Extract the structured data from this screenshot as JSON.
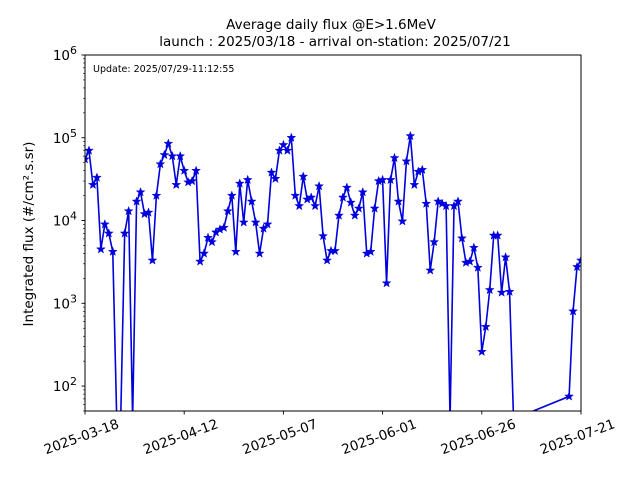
{
  "chart_data": {
    "type": "line",
    "title_line1": "Average daily flux @E>1.6MeV",
    "title_line2": "launch : 2025/03/18 - arrival on-station: 2025/07/21",
    "annotation": "Update: 2025/07/29-11:12:55",
    "xlabel": "",
    "ylabel": "Integrated flux (#/cm².s.sr)",
    "y_scale": "log",
    "ylim": [
      50,
      1000000
    ],
    "y_ticks": [
      {
        "value": 100,
        "base": "10",
        "exp": "2"
      },
      {
        "value": 1000,
        "base": "10",
        "exp": "3"
      },
      {
        "value": 10000,
        "base": "10",
        "exp": "4"
      },
      {
        "value": 100000,
        "base": "10",
        "exp": "5"
      },
      {
        "value": 1000000,
        "base": "10",
        "exp": "6"
      }
    ],
    "xlim": [
      "2025-03-18",
      "2025-07-21"
    ],
    "x_ticks": [
      "2025-03-18",
      "2025-04-12",
      "2025-05-07",
      "2025-06-01",
      "2025-06-26",
      "2025-07-21"
    ],
    "grid": false,
    "line_color": "#0000dd",
    "marker": "star",
    "series": [
      {
        "name": "",
        "points": [
          [
            "2025-03-18",
            55000
          ],
          [
            "2025-03-19",
            70000
          ],
          [
            "2025-03-20",
            27000
          ],
          [
            "2025-03-21",
            33000
          ],
          [
            "2025-03-22",
            4500
          ],
          [
            "2025-03-23",
            9000
          ],
          [
            "2025-03-24",
            7000
          ],
          [
            "2025-03-25",
            4200
          ],
          [
            "2025-03-26",
            40
          ],
          [
            "2025-03-27",
            40
          ],
          [
            "2025-03-28",
            7000
          ],
          [
            "2025-03-29",
            13000
          ],
          [
            "2025-03-30",
            40
          ],
          [
            "2025-03-31",
            17000
          ],
          [
            "2025-04-01",
            22000
          ],
          [
            "2025-04-02",
            12000
          ],
          [
            "2025-04-03",
            12500
          ],
          [
            "2025-04-04",
            3300
          ],
          [
            "2025-04-05",
            20000
          ],
          [
            "2025-04-06",
            48000
          ],
          [
            "2025-04-07",
            62000
          ],
          [
            "2025-04-08",
            85000
          ],
          [
            "2025-04-09",
            60000
          ],
          [
            "2025-04-10",
            27000
          ],
          [
            "2025-04-11",
            60000
          ],
          [
            "2025-04-12",
            40000
          ],
          [
            "2025-04-13",
            29000
          ],
          [
            "2025-04-14",
            30000
          ],
          [
            "2025-04-15",
            40000
          ],
          [
            "2025-04-16",
            3200
          ],
          [
            "2025-04-17",
            4000
          ],
          [
            "2025-04-18",
            6200
          ],
          [
            "2025-04-19",
            5500
          ],
          [
            "2025-04-20",
            7200
          ],
          [
            "2025-04-21",
            7800
          ],
          [
            "2025-04-22",
            8200
          ],
          [
            "2025-04-23",
            13000
          ],
          [
            "2025-04-24",
            20000
          ],
          [
            "2025-04-25",
            4200
          ],
          [
            "2025-04-26",
            28000
          ],
          [
            "2025-04-27",
            9500
          ],
          [
            "2025-04-28",
            31000
          ],
          [
            "2025-04-29",
            17000
          ],
          [
            "2025-04-30",
            9500
          ],
          [
            "2025-05-01",
            4000
          ],
          [
            "2025-05-02",
            8000
          ],
          [
            "2025-05-03",
            9000
          ],
          [
            "2025-05-04",
            38000
          ],
          [
            "2025-05-05",
            32000
          ],
          [
            "2025-05-06",
            70000
          ],
          [
            "2025-05-07",
            82000
          ],
          [
            "2025-05-08",
            70000
          ],
          [
            "2025-05-09",
            100000
          ],
          [
            "2025-05-10",
            20000
          ],
          [
            "2025-05-11",
            15000
          ],
          [
            "2025-05-12",
            34000
          ],
          [
            "2025-05-13",
            18000
          ],
          [
            "2025-05-14",
            19000
          ],
          [
            "2025-05-15",
            15000
          ],
          [
            "2025-05-16",
            26000
          ],
          [
            "2025-05-17",
            6500
          ],
          [
            "2025-05-18",
            3300
          ],
          [
            "2025-05-19",
            4300
          ],
          [
            "2025-05-20",
            4300
          ],
          [
            "2025-05-21",
            11500
          ],
          [
            "2025-05-22",
            19000
          ],
          [
            "2025-05-23",
            25000
          ],
          [
            "2025-05-24",
            16500
          ],
          [
            "2025-05-25",
            11500
          ],
          [
            "2025-05-26",
            14000
          ],
          [
            "2025-05-27",
            22000
          ],
          [
            "2025-05-28",
            4000
          ],
          [
            "2025-05-29",
            4200
          ],
          [
            "2025-05-30",
            14000
          ],
          [
            "2025-05-31",
            30000
          ],
          [
            "2025-06-01",
            31000
          ],
          [
            "2025-06-02",
            1750
          ],
          [
            "2025-06-03",
            31000
          ],
          [
            "2025-06-04",
            57000
          ],
          [
            "2025-06-05",
            17000
          ],
          [
            "2025-06-06",
            9800
          ],
          [
            "2025-06-07",
            52000
          ],
          [
            "2025-06-08",
            105000
          ],
          [
            "2025-06-09",
            27000
          ],
          [
            "2025-06-10",
            39000
          ],
          [
            "2025-06-11",
            41000
          ],
          [
            "2025-06-12",
            16000
          ],
          [
            "2025-06-13",
            2500
          ],
          [
            "2025-06-14",
            5500
          ],
          [
            "2025-06-15",
            17000
          ],
          [
            "2025-06-16",
            16000
          ],
          [
            "2025-06-17",
            15000
          ],
          [
            "2025-06-18",
            40
          ],
          [
            "2025-06-19",
            15000
          ],
          [
            "2025-06-20",
            17000
          ],
          [
            "2025-06-21",
            6100
          ],
          [
            "2025-06-22",
            3100
          ],
          [
            "2025-06-23",
            3200
          ],
          [
            "2025-06-24",
            4700
          ],
          [
            "2025-06-25",
            2700
          ],
          [
            "2025-06-26",
            260
          ],
          [
            "2025-06-27",
            520
          ],
          [
            "2025-06-28",
            1450
          ],
          [
            "2025-06-29",
            6600
          ],
          [
            "2025-06-30",
            6600
          ],
          [
            "2025-07-01",
            1350
          ],
          [
            "2025-07-02",
            3600
          ],
          [
            "2025-07-03",
            1380
          ],
          [
            "2025-07-04",
            40
          ],
          [
            "2025-07-18",
            75
          ],
          [
            "2025-07-19",
            800
          ],
          [
            "2025-07-20",
            2750
          ],
          [
            "2025-07-21",
            3300
          ]
        ]
      }
    ]
  }
}
